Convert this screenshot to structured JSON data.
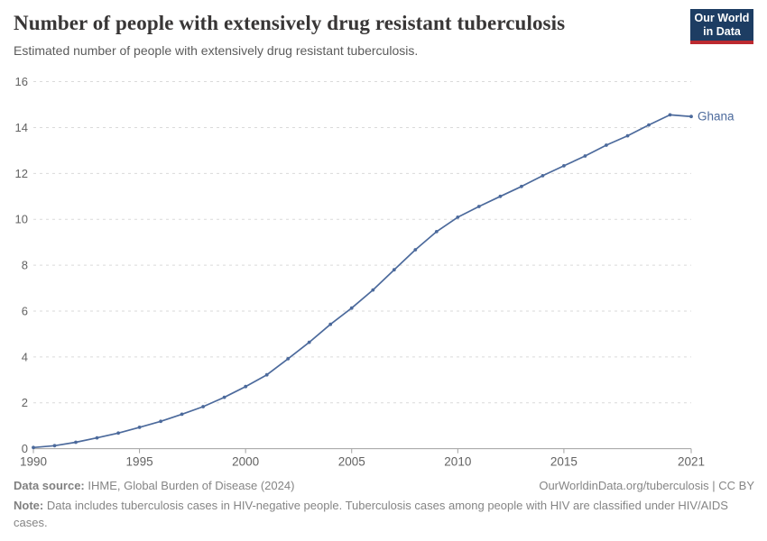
{
  "header": {
    "title": "Number of people with extensively drug resistant tuberculosis",
    "subtitle": "Estimated number of people with extensively drug resistant tuberculosis."
  },
  "logo": {
    "line1": "Our World",
    "line2": "in Data",
    "bg_color": "#1d3d63",
    "accent_color": "#bc2a30"
  },
  "chart_data": {
    "type": "line",
    "title": "Number of people with extensively drug resistant tuberculosis",
    "x": [
      1990,
      1991,
      1992,
      1993,
      1994,
      1995,
      1996,
      1997,
      1998,
      1999,
      2000,
      2001,
      2002,
      2003,
      2004,
      2005,
      2006,
      2007,
      2008,
      2009,
      2010,
      2011,
      2012,
      2013,
      2014,
      2015,
      2016,
      2017,
      2018,
      2019,
      2020,
      2021
    ],
    "series": [
      {
        "name": "Ghana",
        "color": "#4C6A9C",
        "values": [
          0.05,
          0.13,
          0.28,
          0.47,
          0.68,
          0.93,
          1.19,
          1.5,
          1.83,
          2.24,
          2.71,
          3.22,
          3.92,
          4.64,
          5.42,
          6.13,
          6.92,
          7.8,
          8.67,
          9.46,
          10.09,
          10.56,
          11.0,
          11.43,
          11.9,
          12.33,
          12.76,
          13.23,
          13.64,
          14.11,
          14.55,
          14.48
        ]
      }
    ],
    "xlabel": "",
    "ylabel": "",
    "xlim": [
      1990,
      2021
    ],
    "ylim": [
      0,
      16
    ],
    "y_ticks": [
      0,
      2,
      4,
      6,
      8,
      10,
      12,
      14,
      16
    ],
    "x_ticks": [
      1990,
      1995,
      2000,
      2005,
      2010,
      2015,
      2021
    ],
    "grid": "dashed-horizontal",
    "legend": "end-of-line-label",
    "end_label": "Ghana",
    "grid_color": "#dadada",
    "axis_color": "#a1a1a1",
    "tick_label_color": "#636363"
  },
  "footer": {
    "source_label": "Data source:",
    "source_text": " IHME, Global Burden of Disease (2024)",
    "rights": "OurWorldinData.org/tuberculosis | CC BY",
    "note_label": "Note:",
    "note_text": " Data includes tuberculosis cases in HIV-negative people. Tuberculosis cases among people with HIV are classified under HIV/AIDS cases."
  }
}
